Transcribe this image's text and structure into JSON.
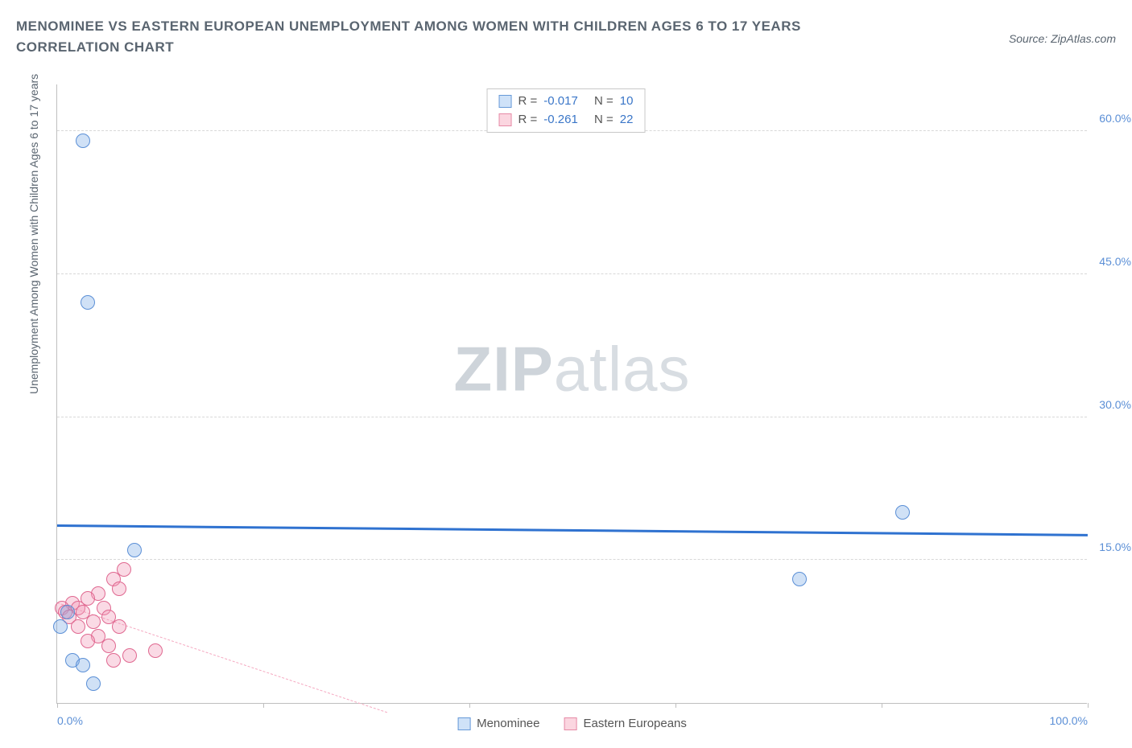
{
  "title": "MENOMINEE VS EASTERN EUROPEAN UNEMPLOYMENT AMONG WOMEN WITH CHILDREN AGES 6 TO 17 YEARS CORRELATION CHART",
  "source": "Source: ZipAtlas.com",
  "yaxis_label": "Unemployment Among Women with Children Ages 6 to 17 years",
  "watermark_bold": "ZIP",
  "watermark_light": "atlas",
  "chart": {
    "type": "scatter",
    "xlim": [
      0,
      100
    ],
    "ylim": [
      0,
      65
    ],
    "xticks": [
      0,
      20,
      40,
      60,
      80,
      100
    ],
    "xtick_labels": [
      "0.0%",
      "",
      "",
      "",
      "",
      "100.0%"
    ],
    "yticks": [
      15,
      30,
      45,
      60
    ],
    "ytick_labels": [
      "15.0%",
      "30.0%",
      "45.0%",
      "60.0%"
    ],
    "background_color": "#ffffff",
    "grid_color": "#d8d8d8",
    "axis_color": "#bfbfbf",
    "tick_label_color": "#5b8fd6",
    "marker_size": 18
  },
  "series": {
    "menominee": {
      "label": "Menominee",
      "color_fill": "rgba(120,170,230,0.35)",
      "color_stroke": "#5b8fd6",
      "R": "-0.017",
      "N": "10",
      "trend": {
        "x1": 0,
        "y1": 18.5,
        "x2": 100,
        "y2": 17.5,
        "color": "#2f72d0",
        "width": 3,
        "style": "solid"
      },
      "points": [
        {
          "x": 2.5,
          "y": 59.0
        },
        {
          "x": 3.0,
          "y": 42.0
        },
        {
          "x": 82.0,
          "y": 20.0
        },
        {
          "x": 7.5,
          "y": 16.0
        },
        {
          "x": 72.0,
          "y": 13.0
        },
        {
          "x": 1.0,
          "y": 9.5
        },
        {
          "x": 0.3,
          "y": 8.0
        },
        {
          "x": 1.5,
          "y": 4.5
        },
        {
          "x": 2.5,
          "y": 4.0
        },
        {
          "x": 3.5,
          "y": 2.0
        }
      ]
    },
    "eastern_europeans": {
      "label": "Eastern Europeans",
      "color_fill": "rgba(240,150,180,0.35)",
      "color_stroke": "#e06890",
      "R": "-0.261",
      "N": "22",
      "trend": {
        "x1": 0,
        "y1": 10.5,
        "x2": 32,
        "y2": -1.0,
        "color": "#f5a8c0",
        "width": 1.5,
        "style": "dashed"
      },
      "points": [
        {
          "x": 6.5,
          "y": 14.0
        },
        {
          "x": 5.5,
          "y": 13.0
        },
        {
          "x": 6.0,
          "y": 12.0
        },
        {
          "x": 4.0,
          "y": 11.5
        },
        {
          "x": 3.0,
          "y": 11.0
        },
        {
          "x": 1.5,
          "y": 10.5
        },
        {
          "x": 0.5,
          "y": 10.0
        },
        {
          "x": 2.0,
          "y": 10.0
        },
        {
          "x": 4.5,
          "y": 10.0
        },
        {
          "x": 0.8,
          "y": 9.5
        },
        {
          "x": 2.5,
          "y": 9.5
        },
        {
          "x": 5.0,
          "y": 9.0
        },
        {
          "x": 1.2,
          "y": 9.0
        },
        {
          "x": 3.5,
          "y": 8.5
        },
        {
          "x": 6.0,
          "y": 8.0
        },
        {
          "x": 2.0,
          "y": 8.0
        },
        {
          "x": 4.0,
          "y": 7.0
        },
        {
          "x": 3.0,
          "y": 6.5
        },
        {
          "x": 5.0,
          "y": 6.0
        },
        {
          "x": 9.5,
          "y": 5.5
        },
        {
          "x": 7.0,
          "y": 5.0
        },
        {
          "x": 5.5,
          "y": 4.5
        }
      ]
    }
  },
  "stats_labels": {
    "R": "R =",
    "N": "N ="
  }
}
